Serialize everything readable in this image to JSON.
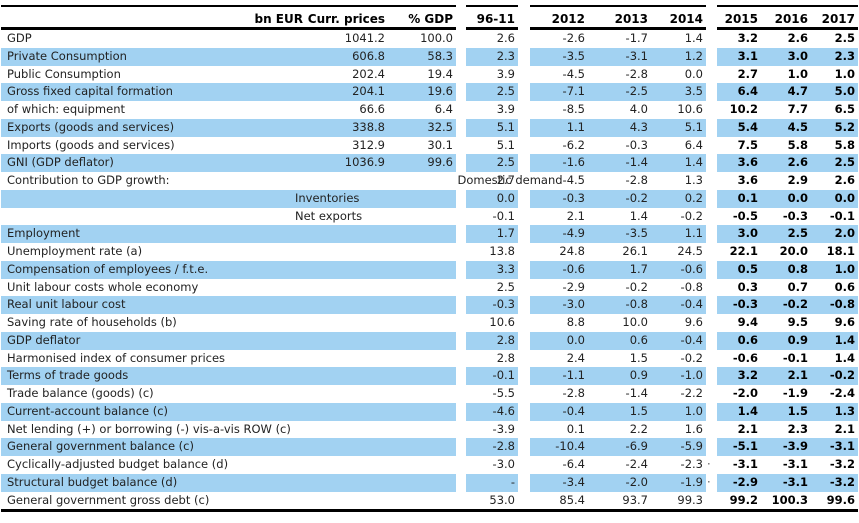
{
  "table": {
    "colors": {
      "row_blue": "#a2d2f2",
      "rule_black": "#000000",
      "text": "#222222"
    },
    "header": {
      "bn_eur": "bn EUR",
      "curr_prices": "Curr. prices",
      "pct_gdp": "% GDP",
      "avg_period": "96-11",
      "years": [
        "2012",
        "2013",
        "2014",
        "2015",
        "2016",
        "2017"
      ]
    },
    "rows": [
      {
        "label": "GDP",
        "sub_label": "",
        "shaded": false,
        "dot_after_2014": false,
        "values": [
          "1041.2",
          "100.0",
          "2.6",
          "-2.6",
          "-1.7",
          "1.4",
          "3.2",
          "2.6",
          "2.5"
        ]
      },
      {
        "label": "Private Consumption",
        "sub_label": "",
        "shaded": true,
        "dot_after_2014": false,
        "values": [
          "606.8",
          "58.3",
          "2.3",
          "-3.5",
          "-3.1",
          "1.2",
          "3.1",
          "3.0",
          "2.3"
        ]
      },
      {
        "label": "Public Consumption",
        "sub_label": "",
        "shaded": false,
        "dot_after_2014": false,
        "values": [
          "202.4",
          "19.4",
          "3.9",
          "-4.5",
          "-2.8",
          "0.0",
          "2.7",
          "1.0",
          "1.0"
        ]
      },
      {
        "label": "Gross fixed capital formation",
        "sub_label": "",
        "shaded": true,
        "dot_after_2014": false,
        "values": [
          "204.1",
          "19.6",
          "2.5",
          "-7.1",
          "-2.5",
          "3.5",
          "6.4",
          "4.7",
          "5.0"
        ]
      },
      {
        "label": "of which: equipment",
        "sub_label": "",
        "shaded": false,
        "dot_after_2014": false,
        "values": [
          "66.6",
          "6.4",
          "3.9",
          "-8.5",
          "4.0",
          "10.6",
          "10.2",
          "7.7",
          "6.5"
        ]
      },
      {
        "label": "Exports (goods and services)",
        "sub_label": "",
        "shaded": true,
        "dot_after_2014": false,
        "values": [
          "338.8",
          "32.5",
          "5.1",
          "1.1",
          "4.3",
          "5.1",
          "5.4",
          "4.5",
          "5.2"
        ]
      },
      {
        "label": "Imports (goods and services)",
        "sub_label": "",
        "shaded": false,
        "dot_after_2014": false,
        "values": [
          "312.9",
          "30.1",
          "5.1",
          "-6.2",
          "-0.3",
          "6.4",
          "7.5",
          "5.8",
          "5.8"
        ]
      },
      {
        "label": "GNI (GDP deflator)",
        "sub_label": "",
        "shaded": true,
        "dot_after_2014": false,
        "values": [
          "1036.9",
          "99.6",
          "2.5",
          "-1.6",
          "-1.4",
          "1.4",
          "3.6",
          "2.6",
          "2.5"
        ]
      },
      {
        "label": "Contribution to GDP growth:",
        "sub_label": "Domestic demand",
        "shaded": false,
        "dot_after_2014": false,
        "values": [
          "",
          "",
          "2.7",
          "-4.5",
          "-2.8",
          "1.3",
          "3.6",
          "2.9",
          "2.6"
        ]
      },
      {
        "label": "",
        "sub_label": "Inventories",
        "shaded": true,
        "dot_after_2014": false,
        "values": [
          "",
          "",
          "0.0",
          "-0.3",
          "-0.2",
          "0.2",
          "0.1",
          "0.0",
          "0.0"
        ]
      },
      {
        "label": "",
        "sub_label": "Net exports",
        "shaded": false,
        "dot_after_2014": false,
        "values": [
          "",
          "",
          "-0.1",
          "2.1",
          "1.4",
          "-0.2",
          "-0.5",
          "-0.3",
          "-0.1"
        ]
      },
      {
        "label": "Employment",
        "sub_label": "",
        "shaded": true,
        "dot_after_2014": false,
        "values": [
          "",
          "",
          "1.7",
          "-4.9",
          "-3.5",
          "1.1",
          "3.0",
          "2.5",
          "2.0"
        ]
      },
      {
        "label": "Unemployment rate (a)",
        "sub_label": "",
        "shaded": false,
        "dot_after_2014": false,
        "values": [
          "",
          "",
          "13.8",
          "24.8",
          "26.1",
          "24.5",
          "22.1",
          "20.0",
          "18.1"
        ]
      },
      {
        "label": "Compensation of employees / f.t.e.",
        "sub_label": "",
        "shaded": true,
        "dot_after_2014": false,
        "values": [
          "",
          "",
          "3.3",
          "-0.6",
          "1.7",
          "-0.6",
          "0.5",
          "0.8",
          "1.0"
        ]
      },
      {
        "label": "Unit labour costs whole economy",
        "sub_label": "",
        "shaded": false,
        "dot_after_2014": false,
        "values": [
          "",
          "",
          "2.5",
          "-2.9",
          "-0.2",
          "-0.8",
          "0.3",
          "0.7",
          "0.6"
        ]
      },
      {
        "label": "Real unit labour cost",
        "sub_label": "",
        "shaded": true,
        "dot_after_2014": false,
        "values": [
          "",
          "",
          "-0.3",
          "-3.0",
          "-0.8",
          "-0.4",
          "-0.3",
          "-0.2",
          "-0.8"
        ]
      },
      {
        "label": "Saving rate of households (b)",
        "sub_label": "",
        "shaded": false,
        "dot_after_2014": false,
        "values": [
          "",
          "",
          "10.6",
          "8.8",
          "10.0",
          "9.6",
          "9.4",
          "9.5",
          "9.6"
        ]
      },
      {
        "label": "GDP deflator",
        "sub_label": "",
        "shaded": true,
        "dot_after_2014": false,
        "values": [
          "",
          "",
          "2.8",
          "0.0",
          "0.6",
          "-0.4",
          "0.6",
          "0.9",
          "1.4"
        ]
      },
      {
        "label": "Harmonised index of consumer prices",
        "sub_label": "",
        "shaded": false,
        "dot_after_2014": false,
        "values": [
          "",
          "",
          "2.8",
          "2.4",
          "1.5",
          "-0.2",
          "-0.6",
          "-0.1",
          "1.4"
        ]
      },
      {
        "label": "Terms of trade goods",
        "sub_label": "",
        "shaded": true,
        "dot_after_2014": false,
        "values": [
          "",
          "",
          "-0.1",
          "-1.1",
          "0.9",
          "-1.0",
          "3.2",
          "2.1",
          "-0.2"
        ]
      },
      {
        "label": "Trade balance (goods) (c)",
        "sub_label": "",
        "shaded": false,
        "dot_after_2014": false,
        "values": [
          "",
          "",
          "-5.5",
          "-2.8",
          "-1.4",
          "-2.2",
          "-2.0",
          "-1.9",
          "-2.4"
        ]
      },
      {
        "label": "Current-account balance (c)",
        "sub_label": "",
        "shaded": true,
        "dot_after_2014": false,
        "values": [
          "",
          "",
          "-4.6",
          "-0.4",
          "1.5",
          "1.0",
          "1.4",
          "1.5",
          "1.3"
        ]
      },
      {
        "label": "Net lending (+) or borrowing (-) vis-a-vis ROW (c)",
        "sub_label": "",
        "shaded": false,
        "dot_after_2014": false,
        "values": [
          "",
          "",
          "-3.9",
          "0.1",
          "2.2",
          "1.6",
          "2.1",
          "2.3",
          "2.1"
        ]
      },
      {
        "label": "General government balance (c)",
        "sub_label": "",
        "shaded": true,
        "dot_after_2014": false,
        "values": [
          "",
          "",
          "-2.8",
          "-10.4",
          "-6.9",
          "-5.9",
          "-5.1",
          "-3.9",
          "-3.1"
        ]
      },
      {
        "label": "Cyclically-adjusted budget balance (d)",
        "sub_label": "",
        "shaded": false,
        "dot_after_2014": true,
        "values": [
          "",
          "",
          "-3.0",
          "-6.4",
          "-2.4",
          "-2.3",
          "-3.1",
          "-3.1",
          "-3.2"
        ]
      },
      {
        "label": "Structural budget balance (d)",
        "sub_label": "",
        "shaded": true,
        "dot_after_2014": true,
        "values": [
          "",
          "",
          "-",
          "-3.4",
          "-2.0",
          "-1.9",
          "-2.9",
          "-3.1",
          "-3.2"
        ]
      },
      {
        "label": "General government gross debt (c)",
        "sub_label": "",
        "shaded": false,
        "dot_after_2014": false,
        "values": [
          "",
          "",
          "53.0",
          "85.4",
          "93.7",
          "99.3",
          "99.2",
          "100.3",
          "99.6"
        ]
      }
    ],
    "dot_marker": "·"
  }
}
